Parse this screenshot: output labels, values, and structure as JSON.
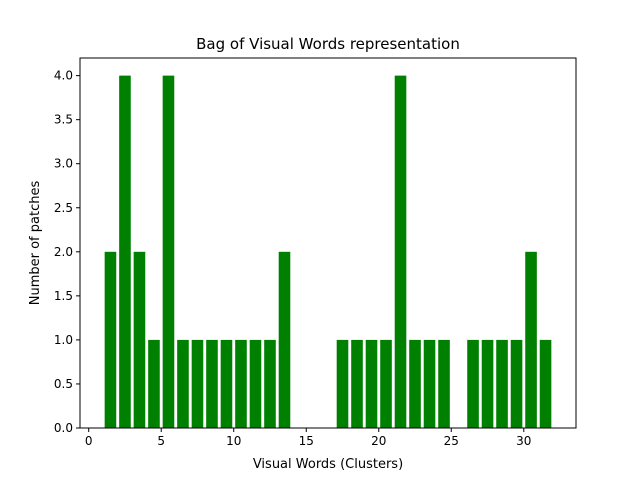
{
  "chart_data": {
    "type": "bar",
    "title": "Bag of Visual Words representation",
    "xlabel": "Visual Words (Clusters)",
    "ylabel": "Number of patches",
    "xlim": [
      -0.6,
      33.6
    ],
    "ylim": [
      0,
      4.2
    ],
    "xticks": [
      0,
      5,
      10,
      15,
      20,
      25,
      30
    ],
    "yticks": [
      0.0,
      0.5,
      1.0,
      1.5,
      2.0,
      2.5,
      3.0,
      3.5,
      4.0
    ],
    "xtick_labels": [
      "0",
      "5",
      "10",
      "15",
      "20",
      "25",
      "30"
    ],
    "ytick_labels": [
      "0.0",
      "0.5",
      "1.0",
      "1.5",
      "2.0",
      "2.5",
      "3.0",
      "3.5",
      "4.0"
    ],
    "bar_width": 0.8,
    "color": "#008000",
    "grid": false,
    "x": [
      1.5,
      2.5,
      3.5,
      4.5,
      5.5,
      6.5,
      7.5,
      8.5,
      9.5,
      10.5,
      11.5,
      12.5,
      13.5,
      14.5,
      15.5,
      16.5,
      17.5,
      18.5,
      19.5,
      20.5,
      21.5,
      22.5,
      23.5,
      24.5,
      25.5,
      26.5,
      27.5,
      28.5,
      29.5,
      30.5,
      31.5
    ],
    "values": [
      2,
      4,
      2,
      1,
      4,
      1,
      1,
      1,
      1,
      1,
      1,
      1,
      2,
      0,
      0,
      0,
      1,
      1,
      1,
      1,
      4,
      1,
      1,
      1,
      0,
      1,
      1,
      1,
      1,
      2,
      1
    ]
  }
}
